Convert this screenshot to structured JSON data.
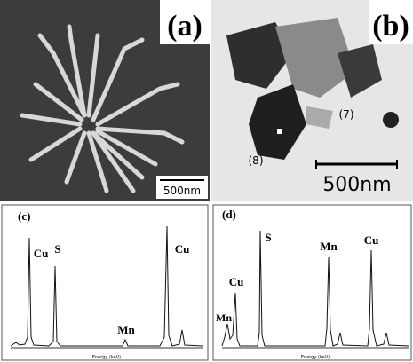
{
  "panels": [
    {
      "label": "(a)",
      "scale_bar": "500nm"
    },
    {
      "label": "(b)",
      "scale_bar": "500nm",
      "annotations": [
        "(7)",
        "(8)"
      ]
    },
    {
      "label": "(c)",
      "peaks": [
        "Cu",
        "S",
        "Mn",
        "Cu"
      ],
      "x_axis_label": "Energy (keV)"
    },
    {
      "label": "(d)",
      "peaks": [
        "Mn",
        "Cu",
        "S",
        "Mn",
        "Cu"
      ],
      "x_axis_label": "Energy (keV)"
    }
  ]
}
